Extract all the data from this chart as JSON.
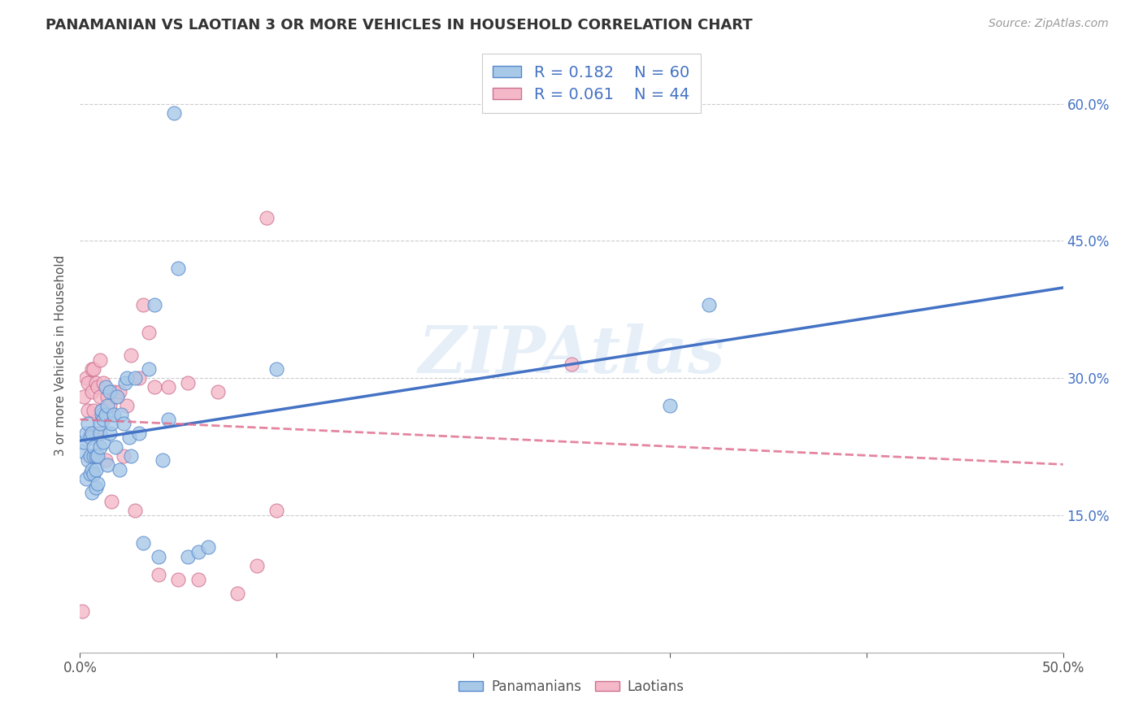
{
  "title": "PANAMANIAN VS LAOTIAN 3 OR MORE VEHICLES IN HOUSEHOLD CORRELATION CHART",
  "source": "Source: ZipAtlas.com",
  "ylabel": "3 or more Vehicles in Household",
  "xlim": [
    0.0,
    0.5
  ],
  "ylim": [
    0.0,
    0.65
  ],
  "xticks": [
    0.0,
    0.1,
    0.2,
    0.3,
    0.4,
    0.5
  ],
  "xticklabels": [
    "0.0%",
    "",
    "",
    "",
    "",
    "50.0%"
  ],
  "yticks": [
    0.0,
    0.15,
    0.3,
    0.45,
    0.6
  ],
  "yticklabels_right": [
    "",
    "15.0%",
    "30.0%",
    "45.0%",
    "60.0%"
  ],
  "watermark": "ZIPAtlas",
  "legend_R1": "0.182",
  "legend_N1": "60",
  "legend_R2": "0.061",
  "legend_N2": "44",
  "pan_color": "#a8c8e8",
  "lao_color": "#f4b8c8",
  "pan_edge_color": "#5588cc",
  "lao_edge_color": "#cc7090",
  "pan_line_color": "#4472c4",
  "lao_line_color": "#e07090",
  "background_color": "#ffffff",
  "pan_x": [
    0.001,
    0.002,
    0.003,
    0.003,
    0.004,
    0.004,
    0.005,
    0.005,
    0.005,
    0.006,
    0.006,
    0.006,
    0.007,
    0.007,
    0.007,
    0.008,
    0.008,
    0.008,
    0.009,
    0.009,
    0.01,
    0.01,
    0.01,
    0.011,
    0.011,
    0.012,
    0.012,
    0.013,
    0.013,
    0.014,
    0.014,
    0.015,
    0.015,
    0.016,
    0.017,
    0.018,
    0.019,
    0.02,
    0.021,
    0.022,
    0.023,
    0.024,
    0.025,
    0.026,
    0.028,
    0.03,
    0.032,
    0.035,
    0.038,
    0.04,
    0.042,
    0.045,
    0.048,
    0.05,
    0.055,
    0.06,
    0.065,
    0.1,
    0.3,
    0.32
  ],
  "pan_y": [
    0.22,
    0.23,
    0.19,
    0.24,
    0.21,
    0.25,
    0.195,
    0.215,
    0.235,
    0.2,
    0.24,
    0.175,
    0.215,
    0.195,
    0.225,
    0.18,
    0.2,
    0.215,
    0.215,
    0.185,
    0.24,
    0.225,
    0.25,
    0.26,
    0.265,
    0.23,
    0.255,
    0.26,
    0.29,
    0.27,
    0.205,
    0.24,
    0.285,
    0.25,
    0.26,
    0.225,
    0.28,
    0.2,
    0.26,
    0.25,
    0.295,
    0.3,
    0.235,
    0.215,
    0.3,
    0.24,
    0.12,
    0.31,
    0.38,
    0.105,
    0.21,
    0.255,
    0.59,
    0.42,
    0.105,
    0.11,
    0.115,
    0.31,
    0.27,
    0.38
  ],
  "lao_x": [
    0.001,
    0.002,
    0.003,
    0.004,
    0.004,
    0.005,
    0.005,
    0.006,
    0.006,
    0.007,
    0.007,
    0.008,
    0.008,
    0.009,
    0.01,
    0.01,
    0.011,
    0.012,
    0.013,
    0.014,
    0.015,
    0.016,
    0.017,
    0.018,
    0.02,
    0.022,
    0.024,
    0.026,
    0.028,
    0.03,
    0.032,
    0.035,
    0.038,
    0.04,
    0.045,
    0.05,
    0.055,
    0.06,
    0.07,
    0.08,
    0.09,
    0.095,
    0.1,
    0.25
  ],
  "lao_y": [
    0.045,
    0.28,
    0.3,
    0.265,
    0.295,
    0.215,
    0.24,
    0.31,
    0.285,
    0.265,
    0.31,
    0.24,
    0.295,
    0.29,
    0.32,
    0.28,
    0.265,
    0.295,
    0.21,
    0.28,
    0.27,
    0.165,
    0.285,
    0.28,
    0.285,
    0.215,
    0.27,
    0.325,
    0.155,
    0.3,
    0.38,
    0.35,
    0.29,
    0.085,
    0.29,
    0.08,
    0.295,
    0.08,
    0.285,
    0.065,
    0.095,
    0.475,
    0.155,
    0.315
  ]
}
